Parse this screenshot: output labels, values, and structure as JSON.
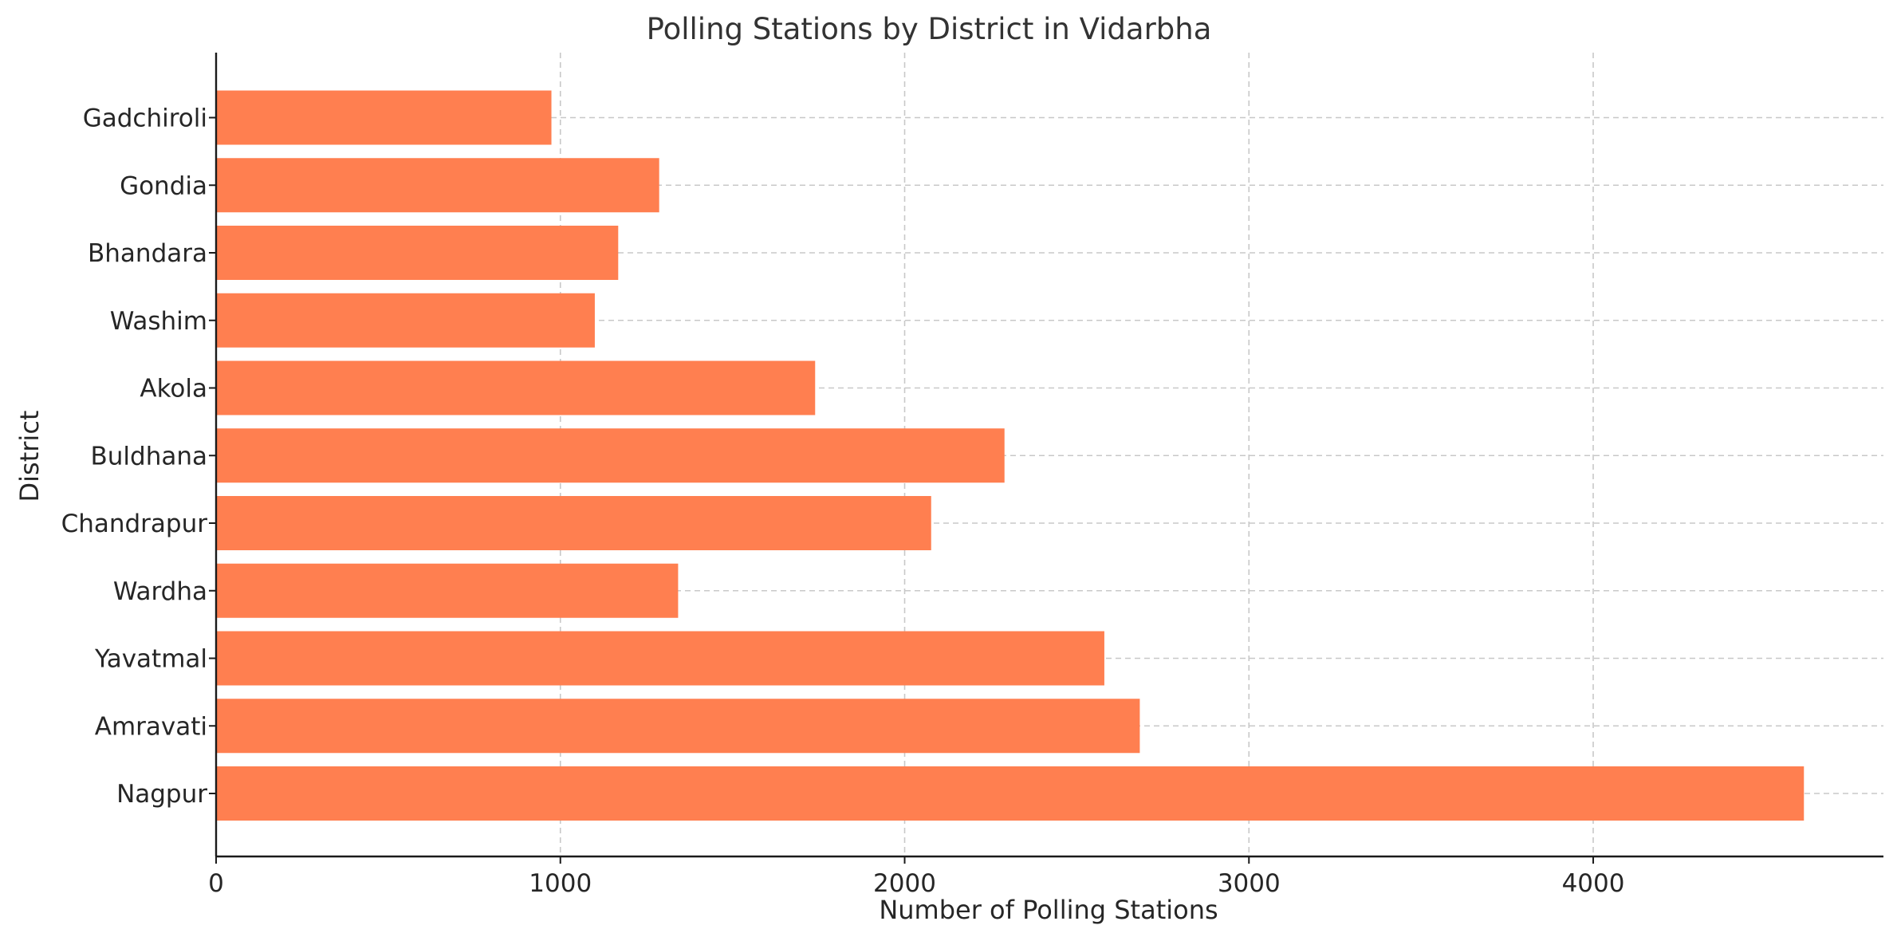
{
  "chart_data": {
    "type": "bar",
    "orientation": "horizontal",
    "title": "Polling Stations by District in Vidarbha",
    "xlabel": "Number of Polling Stations",
    "ylabel": "District",
    "categories": [
      "Nagpur",
      "Amravati",
      "Yavatmal",
      "Wardha",
      "Chandrapur",
      "Buldhana",
      "Akola",
      "Washim",
      "Bhandara",
      "Gondia",
      "Gadchiroli"
    ],
    "values": [
      4612,
      2683,
      2580,
      1342,
      2077,
      2290,
      1740,
      1100,
      1168,
      1287,
      974
    ],
    "xlim": [
      0,
      4843
    ],
    "xticks": [
      0,
      1000,
      2000,
      3000,
      4000
    ],
    "grid": true,
    "bar_color": "#ff7f50"
  }
}
